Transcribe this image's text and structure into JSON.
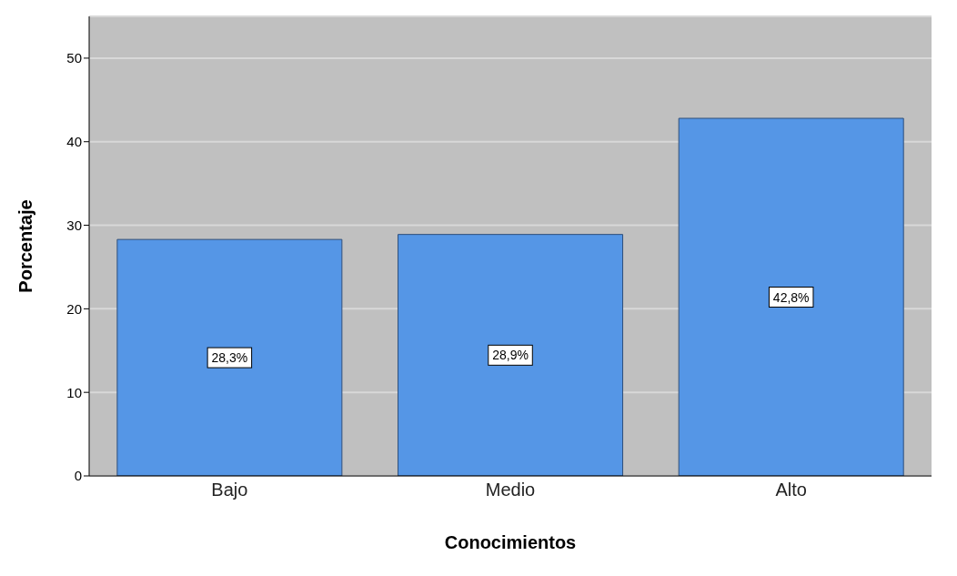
{
  "chart_data": {
    "type": "bar",
    "xlabel": "Conocimientos",
    "ylabel": "Porcentaje",
    "categories": [
      "Bajo",
      "Medio",
      "Alto"
    ],
    "values": [
      28.3,
      28.9,
      42.8
    ],
    "value_labels": [
      "28,3%",
      "28,9%",
      "42,8%"
    ],
    "color": "#5596e6",
    "ylim": [
      0,
      55
    ],
    "yticks": [
      0,
      10,
      20,
      30,
      40,
      50
    ],
    "grid": "y"
  }
}
